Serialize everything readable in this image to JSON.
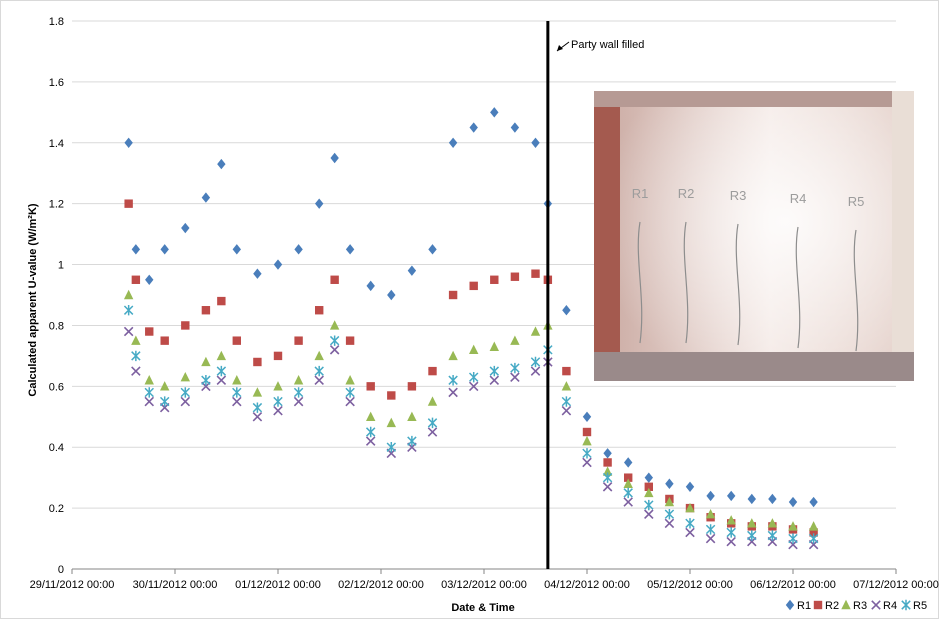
{
  "chart_data": {
    "type": "scatter",
    "title": "",
    "xlabel": "Date & Time",
    "ylabel": "Calculated apparent U-value (W/m²K)",
    "x_ticks": [
      "29/11/2012 00:00",
      "30/11/2012 00:00",
      "01/12/2012 00:00",
      "02/12/2012 00:00",
      "03/12/2012 00:00",
      "04/12/2012 00:00",
      "05/12/2012 00:00",
      "06/12/2012 00:00",
      "07/12/2012 00:00"
    ],
    "y_ticks": [
      "0",
      "0.2",
      "0.4",
      "0.6",
      "0.8",
      "1",
      "1.2",
      "1.4",
      "1.6",
      "1.8"
    ],
    "xlim": [
      0,
      8
    ],
    "ylim": [
      0,
      1.8
    ],
    "grid": "horizontal",
    "legend_position": "bottom-right",
    "annotation": {
      "text": "Party wall filled",
      "x": 4.62
    },
    "photo": {
      "labels": [
        "R1",
        "R2",
        "R3",
        "R4",
        "R5"
      ]
    },
    "series": [
      {
        "name": "R1",
        "color": "#4a7ebb",
        "marker": "diamond",
        "points": [
          [
            0.55,
            1.4
          ],
          [
            0.62,
            1.05
          ],
          [
            0.75,
            0.95
          ],
          [
            0.9,
            1.05
          ],
          [
            1.1,
            1.12
          ],
          [
            1.3,
            1.22
          ],
          [
            1.45,
            1.33
          ],
          [
            1.6,
            1.05
          ],
          [
            1.8,
            0.97
          ],
          [
            2.0,
            1.0
          ],
          [
            2.2,
            1.05
          ],
          [
            2.4,
            1.2
          ],
          [
            2.55,
            1.35
          ],
          [
            2.7,
            1.05
          ],
          [
            2.9,
            0.93
          ],
          [
            3.1,
            0.9
          ],
          [
            3.3,
            0.98
          ],
          [
            3.5,
            1.05
          ],
          [
            3.7,
            1.4
          ],
          [
            3.9,
            1.45
          ],
          [
            4.1,
            1.5
          ],
          [
            4.3,
            1.45
          ],
          [
            4.5,
            1.4
          ],
          [
            4.62,
            1.2
          ],
          [
            4.8,
            0.85
          ],
          [
            5.0,
            0.5
          ],
          [
            5.2,
            0.38
          ],
          [
            5.4,
            0.35
          ],
          [
            5.6,
            0.3
          ],
          [
            5.8,
            0.28
          ],
          [
            6.0,
            0.27
          ],
          [
            6.2,
            0.24
          ],
          [
            6.4,
            0.24
          ],
          [
            6.6,
            0.23
          ],
          [
            6.8,
            0.23
          ],
          [
            7.0,
            0.22
          ],
          [
            7.2,
            0.22
          ]
        ]
      },
      {
        "name": "R2",
        "color": "#be4b48",
        "marker": "square",
        "points": [
          [
            0.55,
            1.2
          ],
          [
            0.62,
            0.95
          ],
          [
            0.75,
            0.78
          ],
          [
            0.9,
            0.75
          ],
          [
            1.1,
            0.8
          ],
          [
            1.3,
            0.85
          ],
          [
            1.45,
            0.88
          ],
          [
            1.6,
            0.75
          ],
          [
            1.8,
            0.68
          ],
          [
            2.0,
            0.7
          ],
          [
            2.2,
            0.75
          ],
          [
            2.4,
            0.85
          ],
          [
            2.55,
            0.95
          ],
          [
            2.7,
            0.75
          ],
          [
            2.9,
            0.6
          ],
          [
            3.1,
            0.57
          ],
          [
            3.3,
            0.6
          ],
          [
            3.5,
            0.65
          ],
          [
            3.7,
            0.9
          ],
          [
            3.9,
            0.93
          ],
          [
            4.1,
            0.95
          ],
          [
            4.3,
            0.96
          ],
          [
            4.5,
            0.97
          ],
          [
            4.62,
            0.95
          ],
          [
            4.8,
            0.65
          ],
          [
            5.0,
            0.45
          ],
          [
            5.2,
            0.35
          ],
          [
            5.4,
            0.3
          ],
          [
            5.6,
            0.27
          ],
          [
            5.8,
            0.23
          ],
          [
            6.0,
            0.2
          ],
          [
            6.2,
            0.17
          ],
          [
            6.4,
            0.15
          ],
          [
            6.6,
            0.14
          ],
          [
            6.8,
            0.14
          ],
          [
            7.0,
            0.13
          ],
          [
            7.2,
            0.12
          ]
        ]
      },
      {
        "name": "R3",
        "color": "#98b954",
        "marker": "triangle",
        "points": [
          [
            0.55,
            0.9
          ],
          [
            0.62,
            0.75
          ],
          [
            0.75,
            0.62
          ],
          [
            0.9,
            0.6
          ],
          [
            1.1,
            0.63
          ],
          [
            1.3,
            0.68
          ],
          [
            1.45,
            0.7
          ],
          [
            1.6,
            0.62
          ],
          [
            1.8,
            0.58
          ],
          [
            2.0,
            0.6
          ],
          [
            2.2,
            0.62
          ],
          [
            2.4,
            0.7
          ],
          [
            2.55,
            0.8
          ],
          [
            2.7,
            0.62
          ],
          [
            2.9,
            0.5
          ],
          [
            3.1,
            0.48
          ],
          [
            3.3,
            0.5
          ],
          [
            3.5,
            0.55
          ],
          [
            3.7,
            0.7
          ],
          [
            3.9,
            0.72
          ],
          [
            4.1,
            0.73
          ],
          [
            4.3,
            0.75
          ],
          [
            4.5,
            0.78
          ],
          [
            4.62,
            0.8
          ],
          [
            4.8,
            0.6
          ],
          [
            5.0,
            0.42
          ],
          [
            5.2,
            0.32
          ],
          [
            5.4,
            0.28
          ],
          [
            5.6,
            0.25
          ],
          [
            5.8,
            0.22
          ],
          [
            6.0,
            0.2
          ],
          [
            6.2,
            0.18
          ],
          [
            6.4,
            0.16
          ],
          [
            6.6,
            0.15
          ],
          [
            6.8,
            0.15
          ],
          [
            7.0,
            0.14
          ],
          [
            7.2,
            0.14
          ]
        ]
      },
      {
        "name": "R4",
        "color": "#7d60a0",
        "marker": "x",
        "points": [
          [
            0.55,
            0.78
          ],
          [
            0.62,
            0.65
          ],
          [
            0.75,
            0.55
          ],
          [
            0.9,
            0.53
          ],
          [
            1.1,
            0.55
          ],
          [
            1.3,
            0.6
          ],
          [
            1.45,
            0.62
          ],
          [
            1.6,
            0.55
          ],
          [
            1.8,
            0.5
          ],
          [
            2.0,
            0.52
          ],
          [
            2.2,
            0.55
          ],
          [
            2.4,
            0.62
          ],
          [
            2.55,
            0.72
          ],
          [
            2.7,
            0.55
          ],
          [
            2.9,
            0.42
          ],
          [
            3.1,
            0.38
          ],
          [
            3.3,
            0.4
          ],
          [
            3.5,
            0.45
          ],
          [
            3.7,
            0.58
          ],
          [
            3.9,
            0.6
          ],
          [
            4.1,
            0.62
          ],
          [
            4.3,
            0.63
          ],
          [
            4.5,
            0.65
          ],
          [
            4.62,
            0.68
          ],
          [
            4.8,
            0.52
          ],
          [
            5.0,
            0.35
          ],
          [
            5.2,
            0.27
          ],
          [
            5.4,
            0.22
          ],
          [
            5.6,
            0.18
          ],
          [
            5.8,
            0.15
          ],
          [
            6.0,
            0.12
          ],
          [
            6.2,
            0.1
          ],
          [
            6.4,
            0.09
          ],
          [
            6.6,
            0.09
          ],
          [
            6.8,
            0.09
          ],
          [
            7.0,
            0.08
          ],
          [
            7.2,
            0.08
          ]
        ]
      },
      {
        "name": "R5",
        "color": "#46aac5",
        "marker": "star",
        "points": [
          [
            0.55,
            0.85
          ],
          [
            0.62,
            0.7
          ],
          [
            0.75,
            0.58
          ],
          [
            0.9,
            0.55
          ],
          [
            1.1,
            0.58
          ],
          [
            1.3,
            0.62
          ],
          [
            1.45,
            0.65
          ],
          [
            1.6,
            0.58
          ],
          [
            1.8,
            0.53
          ],
          [
            2.0,
            0.55
          ],
          [
            2.2,
            0.58
          ],
          [
            2.4,
            0.65
          ],
          [
            2.55,
            0.75
          ],
          [
            2.7,
            0.58
          ],
          [
            2.9,
            0.45
          ],
          [
            3.1,
            0.4
          ],
          [
            3.3,
            0.42
          ],
          [
            3.5,
            0.48
          ],
          [
            3.7,
            0.62
          ],
          [
            3.9,
            0.63
          ],
          [
            4.1,
            0.65
          ],
          [
            4.3,
            0.66
          ],
          [
            4.5,
            0.68
          ],
          [
            4.62,
            0.72
          ],
          [
            4.8,
            0.55
          ],
          [
            5.0,
            0.38
          ],
          [
            5.2,
            0.3
          ],
          [
            5.4,
            0.25
          ],
          [
            5.6,
            0.21
          ],
          [
            5.8,
            0.18
          ],
          [
            6.0,
            0.15
          ],
          [
            6.2,
            0.13
          ],
          [
            6.4,
            0.12
          ],
          [
            6.6,
            0.11
          ],
          [
            6.8,
            0.11
          ],
          [
            7.0,
            0.1
          ],
          [
            7.2,
            0.1
          ]
        ]
      }
    ]
  }
}
